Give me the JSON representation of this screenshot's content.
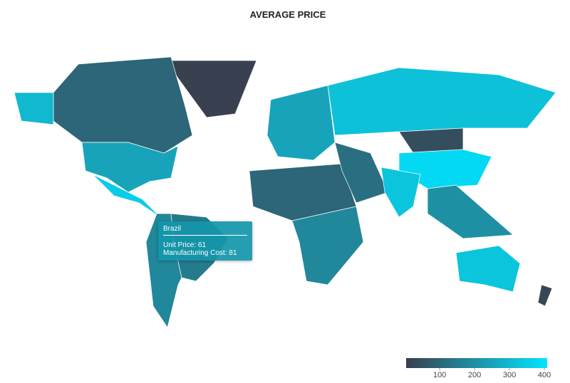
{
  "chart_data": {
    "type": "choropleth",
    "title": "AVERAGE PRICE",
    "values": [
      10,
      100,
      300,
      250,
      350,
      180,
      150,
      250,
      320,
      100,
      180,
      120,
      40,
      380,
      330,
      200,
      330,
      20
    ],
    "colors": [
      "#3a3f4e",
      "#00e5ff"
    ],
    "colorlim": [
      4,
      408
    ],
    "colorticks": [
      100,
      200,
      300,
      400
    ],
    "tooltip": {
      "title": "Brazil",
      "lines": [
        "Unit Price: 61",
        "Manufacturing Cost: 81"
      ]
    }
  }
}
